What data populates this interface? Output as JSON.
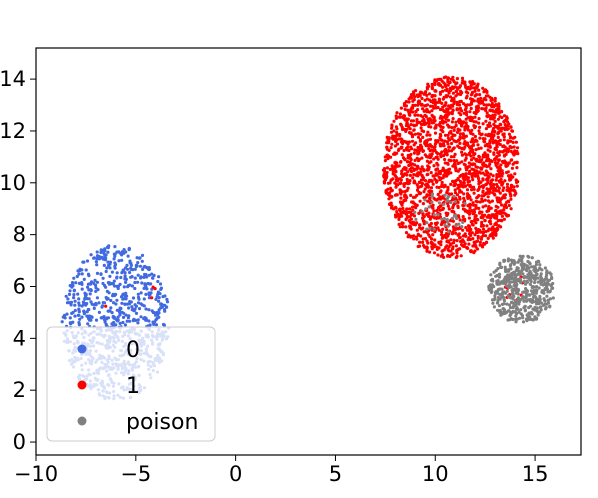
{
  "chart_data": {
    "type": "scatter",
    "title": "",
    "xlabel": "",
    "ylabel": "",
    "xlim": [
      -10,
      17.3
    ],
    "ylim": [
      -0.5,
      15.2
    ],
    "xticks": [
      -10,
      -5,
      0,
      5,
      10,
      15
    ],
    "xtick_labels": [
      "−10",
      "−5",
      "0",
      "5",
      "10",
      "15"
    ],
    "yticks": [
      0,
      2,
      4,
      6,
      8,
      10,
      12,
      14
    ],
    "ytick_labels": [
      "0",
      "2",
      "4",
      "6",
      "8",
      "10",
      "12",
      "14"
    ],
    "grid": false,
    "legend_position": "lower-left",
    "series": [
      {
        "name": "0",
        "color": "#4169e1",
        "clusters": [
          {
            "center": [
              -6.0,
              4.6
            ],
            "radius": [
              2.7,
              3.0
            ],
            "n": 900
          }
        ]
      },
      {
        "name": "1",
        "color": "#ff0000",
        "clusters": [
          {
            "center": [
              10.8,
              10.6
            ],
            "radius": [
              3.4,
              3.5
            ],
            "n": 2200
          },
          {
            "center": [
              14.0,
              5.9
            ],
            "radius": [
              0.5,
              0.6
            ],
            "n": 12
          },
          {
            "center": [
              -5.5,
              5.4
            ],
            "radius": [
              2.0,
              0.8
            ],
            "n": 4
          }
        ]
      },
      {
        "name": "poison",
        "color": "#808080",
        "clusters": [
          {
            "center": [
              14.3,
              5.9
            ],
            "radius": [
              1.7,
              1.3
            ],
            "n": 500
          },
          {
            "center": [
              10.3,
              8.8
            ],
            "radius": [
              1.5,
              0.8
            ],
            "n": 40
          }
        ]
      }
    ]
  }
}
